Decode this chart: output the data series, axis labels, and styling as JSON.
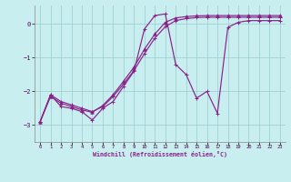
{
  "xlabel": "Windchill (Refroidissement éolien,°C)",
  "bg_color": "#c8eef0",
  "line_color": "#882288",
  "grid_color": "#99cccc",
  "xlim": [
    -0.5,
    23.5
  ],
  "ylim": [
    -3.5,
    0.55
  ],
  "yticks": [
    0,
    -1,
    -2,
    -3
  ],
  "xticks": [
    0,
    1,
    2,
    3,
    4,
    5,
    6,
    7,
    8,
    9,
    10,
    11,
    12,
    13,
    14,
    15,
    16,
    17,
    18,
    19,
    20,
    21,
    22,
    23
  ],
  "series1_x": [
    0,
    1,
    2,
    3,
    4,
    5,
    6,
    7,
    8,
    9,
    10,
    11,
    12,
    13,
    14,
    15,
    16,
    17,
    18,
    19,
    20,
    21,
    22,
    23
  ],
  "series1_y": [
    -2.9,
    -2.1,
    -2.45,
    -2.5,
    -2.6,
    -2.85,
    -2.5,
    -2.3,
    -1.85,
    -1.4,
    -0.15,
    0.25,
    0.3,
    -1.2,
    -1.5,
    -2.2,
    -2.0,
    -2.65,
    -0.1,
    0.05,
    0.1,
    0.1,
    0.1,
    0.1
  ],
  "series2_x": [
    0,
    1,
    2,
    3,
    4,
    5,
    6,
    7,
    8,
    9,
    10,
    11,
    12,
    13,
    14,
    15,
    16,
    17,
    18,
    19,
    20,
    21,
    22,
    23
  ],
  "series2_y": [
    -2.9,
    -2.1,
    -2.3,
    -2.4,
    -2.5,
    -2.6,
    -2.45,
    -2.15,
    -1.78,
    -1.38,
    -0.88,
    -0.42,
    -0.08,
    0.1,
    0.16,
    0.19,
    0.2,
    0.2,
    0.2,
    0.2,
    0.2,
    0.2,
    0.2,
    0.2
  ],
  "series3_x": [
    0,
    1,
    2,
    3,
    4,
    5,
    6,
    7,
    8,
    9,
    10,
    11,
    12,
    13,
    14,
    15,
    16,
    17,
    18,
    19,
    20,
    21,
    22,
    23
  ],
  "series3_y": [
    -2.9,
    -2.15,
    -2.35,
    -2.45,
    -2.55,
    -2.62,
    -2.42,
    -2.1,
    -1.7,
    -1.28,
    -0.75,
    -0.3,
    0.05,
    0.18,
    0.22,
    0.24,
    0.25,
    0.25,
    0.25,
    0.25,
    0.25,
    0.25,
    0.25,
    0.25
  ]
}
